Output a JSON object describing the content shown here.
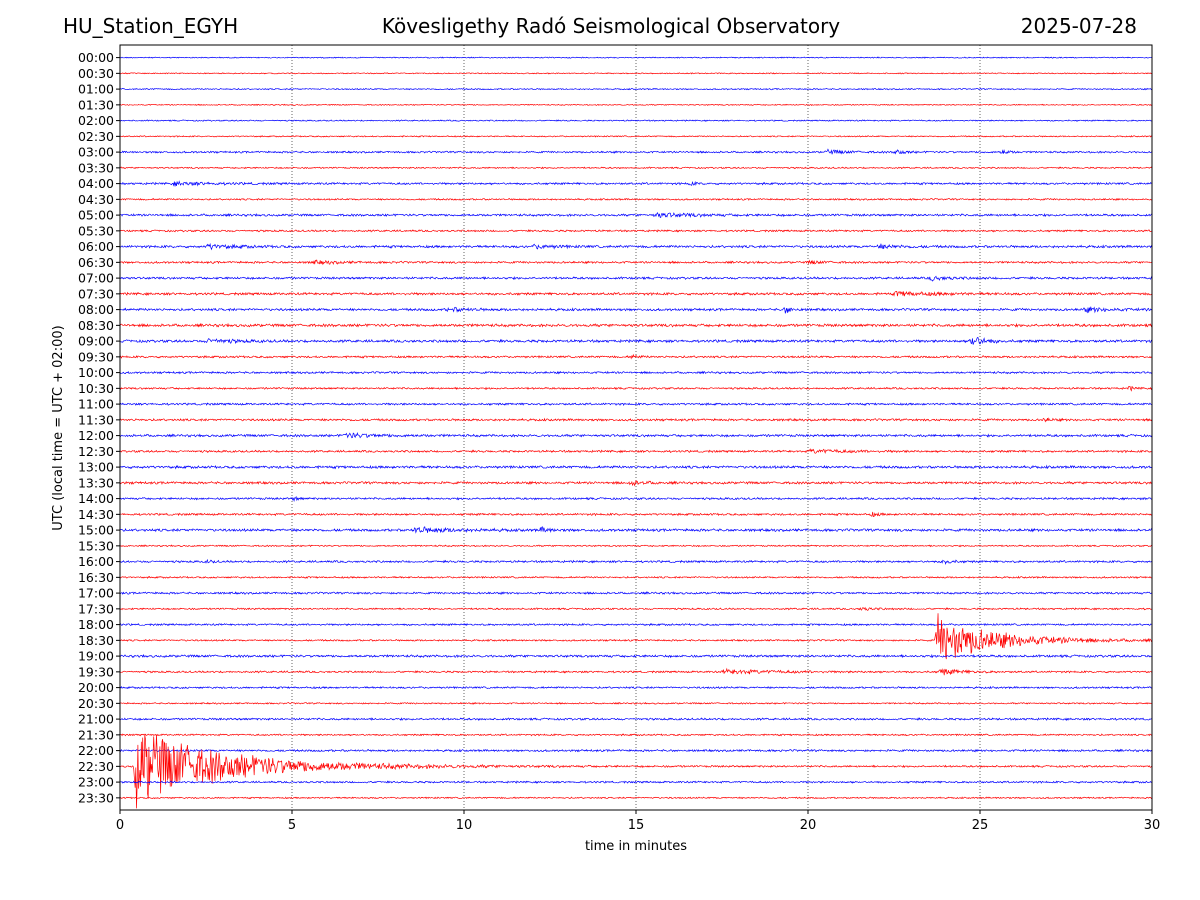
{
  "header": {
    "station": "HU_Station_EGYH",
    "title": "Kövesligethy Radó Seismological Observatory",
    "date": "2025-07-28"
  },
  "chart_data": {
    "type": "line",
    "title": "Kövesligethy Radó Seismological Observatory",
    "xlabel": "time in minutes",
    "ylabel": "UTC (local time = UTC + 02:00)",
    "xlim": [
      0,
      30
    ],
    "x_ticks": [
      "0",
      "5",
      "10",
      "15",
      "20",
      "25",
      "30"
    ],
    "grid": "vertical dotted lines at 5, 10, 15, 20, 25",
    "colors": {
      "even_rows": "#0000ff",
      "odd_rows": "#ff0000"
    },
    "rows": [
      {
        "label": "00:00",
        "noise": 0.6
      },
      {
        "label": "00:30",
        "noise": 0.6
      },
      {
        "label": "01:00",
        "noise": 0.7
      },
      {
        "label": "01:30",
        "noise": 0.6
      },
      {
        "label": "02:00",
        "noise": 0.7
      },
      {
        "label": "02:30",
        "noise": 0.7
      },
      {
        "label": "03:00",
        "noise": 1.0,
        "events": [
          {
            "t": 20.5,
            "amp": 2.5,
            "dur": 1.5
          },
          {
            "t": 22.5,
            "amp": 4,
            "dur": 0.6
          },
          {
            "t": 25.6,
            "amp": 4,
            "dur": 0.5
          }
        ]
      },
      {
        "label": "03:30",
        "noise": 0.8
      },
      {
        "label": "04:00",
        "noise": 1.1,
        "events": [
          {
            "t": 1.5,
            "amp": 2,
            "dur": 3
          },
          {
            "t": 16.5,
            "amp": 2.5,
            "dur": 0.5
          }
        ]
      },
      {
        "label": "04:30",
        "noise": 0.9
      },
      {
        "label": "05:00",
        "noise": 1.2,
        "events": [
          {
            "t": 15.5,
            "amp": 2.5,
            "dur": 3
          }
        ]
      },
      {
        "label": "05:30",
        "noise": 1.0
      },
      {
        "label": "06:00",
        "noise": 1.3,
        "events": [
          {
            "t": 2.5,
            "amp": 2.5,
            "dur": 2
          },
          {
            "t": 12,
            "amp": 2.5,
            "dur": 1.5
          },
          {
            "t": 22,
            "amp": 2.5,
            "dur": 1.5
          }
        ]
      },
      {
        "label": "06:30",
        "noise": 1.1,
        "events": [
          {
            "t": 5.5,
            "amp": 2,
            "dur": 2
          },
          {
            "t": 20,
            "amp": 2,
            "dur": 1
          }
        ]
      },
      {
        "label": "07:00",
        "noise": 1.2,
        "events": [
          {
            "t": 23.5,
            "amp": 2.5,
            "dur": 1.5
          }
        ]
      },
      {
        "label": "07:30",
        "noise": 1.3,
        "events": [
          {
            "t": 22.5,
            "amp": 2.5,
            "dur": 3
          }
        ]
      },
      {
        "label": "08:00",
        "noise": 1.3,
        "events": [
          {
            "t": 9.5,
            "amp": 2.5,
            "dur": 1.5
          },
          {
            "t": 19.3,
            "amp": 7,
            "dur": 0.4
          },
          {
            "t": 28,
            "amp": 2.5,
            "dur": 2
          }
        ]
      },
      {
        "label": "08:30",
        "noise": 1.5
      },
      {
        "label": "09:00",
        "noise": 1.4,
        "events": [
          {
            "t": 2.5,
            "amp": 2.5,
            "dur": 2
          },
          {
            "t": 24.7,
            "amp": 10,
            "dur": 0.8
          }
        ]
      },
      {
        "label": "09:30",
        "noise": 1.1,
        "events": [
          {
            "t": 14.8,
            "amp": 3,
            "dur": 0.5
          }
        ]
      },
      {
        "label": "10:00",
        "noise": 1.1
      },
      {
        "label": "10:30",
        "noise": 1.0,
        "events": [
          {
            "t": 29.3,
            "amp": 4,
            "dur": 0.3
          }
        ]
      },
      {
        "label": "11:00",
        "noise": 1.1
      },
      {
        "label": "11:30",
        "noise": 1.2,
        "events": [
          {
            "t": 26.8,
            "amp": 3,
            "dur": 0.5
          }
        ]
      },
      {
        "label": "12:00",
        "noise": 1.3,
        "events": [
          {
            "t": 6.5,
            "amp": 2.5,
            "dur": 2.5
          }
        ]
      },
      {
        "label": "12:30",
        "noise": 1.1,
        "events": [
          {
            "t": 20,
            "amp": 2,
            "dur": 3
          }
        ]
      },
      {
        "label": "13:00",
        "noise": 1.4
      },
      {
        "label": "13:30",
        "noise": 1.3,
        "events": [
          {
            "t": 14.8,
            "amp": 3,
            "dur": 1
          }
        ]
      },
      {
        "label": "14:00",
        "noise": 1.1,
        "events": [
          {
            "t": 5,
            "amp": 3,
            "dur": 0.4
          }
        ]
      },
      {
        "label": "14:30",
        "noise": 1.1,
        "events": [
          {
            "t": 21.8,
            "amp": 3,
            "dur": 0.5
          }
        ]
      },
      {
        "label": "15:00",
        "noise": 1.4,
        "events": [
          {
            "t": 8.5,
            "amp": 3,
            "dur": 3
          },
          {
            "t": 12.2,
            "amp": 3.5,
            "dur": 0.6
          }
        ]
      },
      {
        "label": "15:30",
        "noise": 0.8
      },
      {
        "label": "16:00",
        "noise": 1.1,
        "events": [
          {
            "t": 2.5,
            "amp": 2.5,
            "dur": 0.4
          },
          {
            "t": 23.9,
            "amp": 5,
            "dur": 0.5
          }
        ]
      },
      {
        "label": "16:30",
        "noise": 0.9
      },
      {
        "label": "17:00",
        "noise": 1.1
      },
      {
        "label": "17:30",
        "noise": 0.9,
        "events": [
          {
            "t": 21.5,
            "amp": 2,
            "dur": 1
          }
        ]
      },
      {
        "label": "18:00",
        "noise": 1.0
      },
      {
        "label": "18:30",
        "noise": 0.9,
        "events": [
          {
            "t": 23.7,
            "amp": 28,
            "dur": 4.5
          }
        ]
      },
      {
        "label": "19:00",
        "noise": 1.3
      },
      {
        "label": "19:30",
        "noise": 1.0,
        "events": [
          {
            "t": 17.5,
            "amp": 2.5,
            "dur": 4
          },
          {
            "t": 23.8,
            "amp": 4,
            "dur": 1.5
          }
        ]
      },
      {
        "label": "20:00",
        "noise": 1.0
      },
      {
        "label": "20:30",
        "noise": 0.8
      },
      {
        "label": "21:00",
        "noise": 1.1
      },
      {
        "label": "21:30",
        "noise": 0.9
      },
      {
        "label": "22:00",
        "noise": 1.1
      },
      {
        "label": "22:30",
        "noise": 1.0,
        "events": [
          {
            "t": 0.4,
            "amp": 45,
            "dur": 7
          }
        ]
      },
      {
        "label": "23:00",
        "noise": 1.0
      },
      {
        "label": "23:30",
        "noise": 0.8
      }
    ]
  }
}
